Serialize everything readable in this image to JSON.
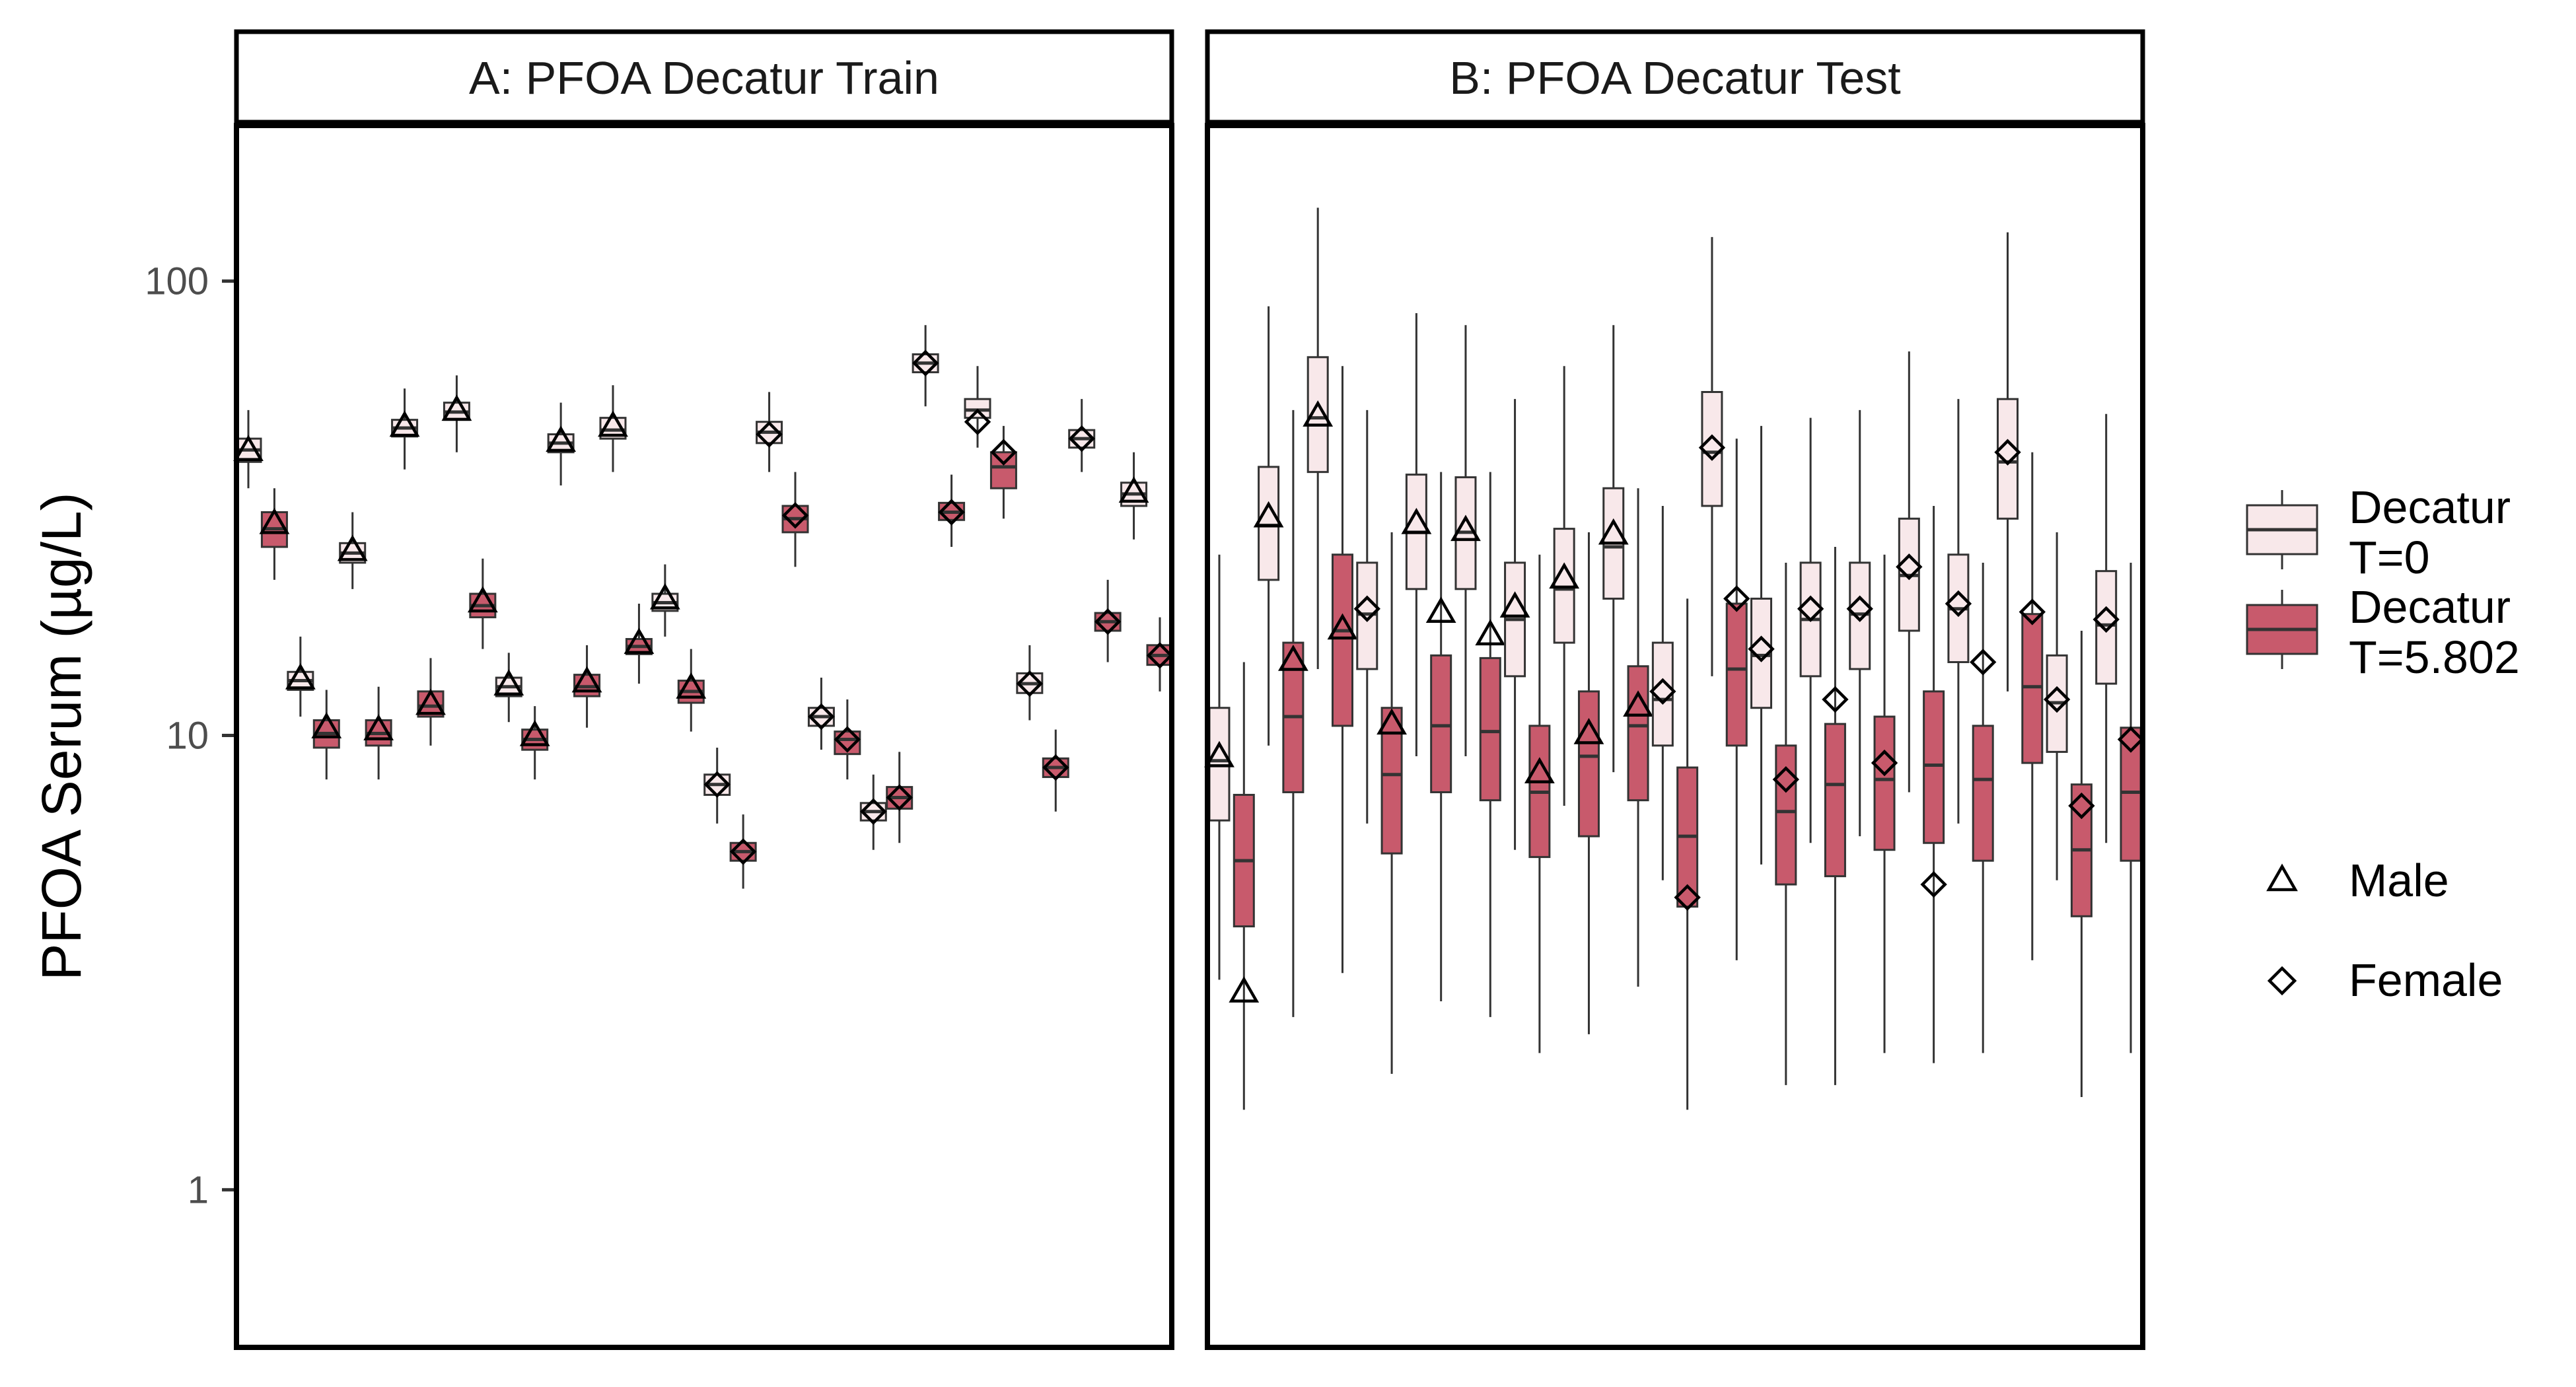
{
  "chart_data": {
    "type": "box",
    "ylabel": "PFOA Serum (µg/L)",
    "yscale": "log",
    "ylim": [
      0.45,
      220
    ],
    "yticks": [
      1,
      10,
      100
    ],
    "ytick_labels": [
      "1",
      "10",
      "100"
    ],
    "colors": {
      "Decatur T=0": "#f8e8ea",
      "Decatur T=5.802": "#c85a6c"
    },
    "legend": {
      "fill": [
        {
          "group": "t0",
          "label_line1": "Decatur",
          "label_line2": "T=0"
        },
        {
          "group": "t5",
          "label_line1": "Decatur",
          "label_line2": "T=5.802"
        }
      ],
      "shape": [
        {
          "shape": "triangle",
          "label": "Male"
        },
        {
          "shape": "diamond",
          "label": "Female"
        }
      ],
      "placement": "right"
    },
    "panels": [
      {
        "title": "A: PFOA Decatur Train",
        "boxes": [
          {
            "group": "t0",
            "q1": 40,
            "median": 42.5,
            "q3": 45,
            "lo": 35,
            "hi": 52,
            "obs": 42,
            "shape": "triangle"
          },
          {
            "group": "t5",
            "q1": 26,
            "median": 28.5,
            "q3": 31,
            "lo": 22,
            "hi": 35,
            "obs": 29,
            "shape": "triangle"
          },
          {
            "group": "t0",
            "q1": 12.6,
            "median": 13.2,
            "q3": 13.8,
            "lo": 11,
            "hi": 16.5,
            "obs": 13.2,
            "shape": "triangle"
          },
          {
            "group": "t5",
            "q1": 9.4,
            "median": 10.1,
            "q3": 10.8,
            "lo": 8,
            "hi": 12.6,
            "obs": 10.3,
            "shape": "triangle"
          },
          {
            "group": "t0",
            "q1": 24,
            "median": 25.2,
            "q3": 26.5,
            "lo": 21,
            "hi": 31,
            "obs": 25.3,
            "shape": "triangle"
          },
          {
            "group": "t5",
            "q1": 9.5,
            "median": 10.1,
            "q3": 10.8,
            "lo": 8,
            "hi": 12.8,
            "obs": 10.2,
            "shape": "triangle"
          },
          {
            "group": "t0",
            "q1": 45.5,
            "median": 47.5,
            "q3": 49.5,
            "lo": 38.5,
            "hi": 58,
            "obs": 47.5,
            "shape": "triangle"
          },
          {
            "group": "t5",
            "q1": 11,
            "median": 11.6,
            "q3": 12.5,
            "lo": 9.5,
            "hi": 14.8,
            "obs": 11.6,
            "shape": "triangle"
          },
          {
            "group": "t0",
            "q1": 49.5,
            "median": 51.5,
            "q3": 54,
            "lo": 42,
            "hi": 62,
            "obs": 51.5,
            "shape": "triangle"
          },
          {
            "group": "t5",
            "q1": 18.2,
            "median": 19.3,
            "q3": 20.5,
            "lo": 15.5,
            "hi": 24.5,
            "obs": 19.5,
            "shape": "triangle"
          },
          {
            "group": "t0",
            "q1": 12.2,
            "median": 12.8,
            "q3": 13.4,
            "lo": 10.7,
            "hi": 15.2,
            "obs": 12.8,
            "shape": "triangle"
          },
          {
            "group": "t5",
            "q1": 9.3,
            "median": 9.8,
            "q3": 10.3,
            "lo": 8,
            "hi": 11.6,
            "obs": 9.9,
            "shape": "triangle"
          },
          {
            "group": "t0",
            "q1": 42,
            "median": 44,
            "q3": 46,
            "lo": 35.5,
            "hi": 54,
            "obs": 44,
            "shape": "triangle"
          },
          {
            "group": "t5",
            "q1": 12.2,
            "median": 12.8,
            "q3": 13.6,
            "lo": 10.4,
            "hi": 15.8,
            "obs": 13,
            "shape": "triangle"
          },
          {
            "group": "t0",
            "q1": 45,
            "median": 47,
            "q3": 50,
            "lo": 38,
            "hi": 59,
            "obs": 47.5,
            "shape": "triangle"
          },
          {
            "group": "t5",
            "q1": 15.1,
            "median": 15.7,
            "q3": 16.3,
            "lo": 13,
            "hi": 19.5,
            "obs": 15.8,
            "shape": "triangle"
          },
          {
            "group": "t0",
            "q1": 18.8,
            "median": 19.6,
            "q3": 20.5,
            "lo": 16.5,
            "hi": 23.8,
            "obs": 19.8,
            "shape": "triangle"
          },
          {
            "group": "t5",
            "q1": 11.8,
            "median": 12.5,
            "q3": 13.2,
            "lo": 10.2,
            "hi": 15.5,
            "obs": 12.6,
            "shape": "triangle"
          },
          {
            "group": "t0",
            "q1": 7.4,
            "median": 7.8,
            "q3": 8.2,
            "lo": 6.4,
            "hi": 9.4,
            "obs": 7.8,
            "shape": "diamond"
          },
          {
            "group": "t5",
            "q1": 5.3,
            "median": 5.55,
            "q3": 5.8,
            "lo": 4.6,
            "hi": 6.7,
            "obs": 5.55,
            "shape": "diamond"
          },
          {
            "group": "t0",
            "q1": 44,
            "median": 46.5,
            "q3": 49,
            "lo": 38,
            "hi": 57,
            "obs": 46,
            "shape": "diamond"
          },
          {
            "group": "t5",
            "q1": 28,
            "median": 30,
            "q3": 32,
            "lo": 23.5,
            "hi": 38,
            "obs": 30.5,
            "shape": "diamond"
          },
          {
            "group": "t0",
            "q1": 10.5,
            "median": 11,
            "q3": 11.5,
            "lo": 9.3,
            "hi": 13.4,
            "obs": 11,
            "shape": "diamond"
          },
          {
            "group": "t5",
            "q1": 9.1,
            "median": 9.8,
            "q3": 10.2,
            "lo": 8,
            "hi": 12,
            "obs": 9.8,
            "shape": "diamond"
          },
          {
            "group": "t0",
            "q1": 6.5,
            "median": 6.8,
            "q3": 7.1,
            "lo": 5.6,
            "hi": 8.2,
            "obs": 6.8,
            "shape": "diamond"
          },
          {
            "group": "t5",
            "q1": 6.9,
            "median": 7.3,
            "q3": 7.7,
            "lo": 5.8,
            "hi": 9.2,
            "obs": 7.3,
            "shape": "diamond"
          },
          {
            "group": "t0",
            "q1": 63,
            "median": 66,
            "q3": 69,
            "lo": 53,
            "hi": 80,
            "obs": 66,
            "shape": "diamond"
          },
          {
            "group": "t5",
            "q1": 29.8,
            "median": 31,
            "q3": 32.5,
            "lo": 26,
            "hi": 37.5,
            "obs": 31,
            "shape": "diamond"
          },
          {
            "group": "t0",
            "q1": 50,
            "median": 52,
            "q3": 55,
            "lo": 43,
            "hi": 65,
            "obs": 49,
            "shape": "diamond"
          },
          {
            "group": "t5",
            "q1": 35,
            "median": 39,
            "q3": 42,
            "lo": 30,
            "hi": 48,
            "obs": 42,
            "shape": "diamond"
          },
          {
            "group": "t0",
            "q1": 12.4,
            "median": 13,
            "q3": 13.7,
            "lo": 10.8,
            "hi": 15.8,
            "obs": 13,
            "shape": "diamond"
          },
          {
            "group": "t5",
            "q1": 8.1,
            "median": 8.5,
            "q3": 8.9,
            "lo": 6.8,
            "hi": 10.3,
            "obs": 8.5,
            "shape": "diamond"
          },
          {
            "group": "t0",
            "q1": 43,
            "median": 45,
            "q3": 47,
            "lo": 38,
            "hi": 55,
            "obs": 45,
            "shape": "diamond"
          },
          {
            "group": "t5",
            "q1": 17,
            "median": 17.8,
            "q3": 18.6,
            "lo": 14.5,
            "hi": 22,
            "obs": 17.8,
            "shape": "diamond"
          },
          {
            "group": "t0",
            "q1": 32,
            "median": 34,
            "q3": 36,
            "lo": 27,
            "hi": 42,
            "obs": 34,
            "shape": "triangle"
          },
          {
            "group": "t5",
            "q1": 14.3,
            "median": 15,
            "q3": 15.8,
            "lo": 12.5,
            "hi": 18.2,
            "obs": 15,
            "shape": "diamond"
          }
        ]
      },
      {
        "title": "B: PFOA Decatur Test",
        "boxes": [
          {
            "group": "t0",
            "q1": 6.5,
            "median": 8.8,
            "q3": 11.5,
            "lo": 2.9,
            "hi": 25,
            "obs": 8.9,
            "shape": "triangle"
          },
          {
            "group": "t5",
            "q1": 3.8,
            "median": 5.3,
            "q3": 7.4,
            "lo": 1.5,
            "hi": 14.5,
            "obs": 2.7,
            "shape": "triangle"
          },
          {
            "group": "t0",
            "q1": 22,
            "median": 29,
            "q3": 39,
            "lo": 9.5,
            "hi": 88,
            "obs": 30,
            "shape": "triangle"
          },
          {
            "group": "t5",
            "q1": 7.5,
            "median": 11,
            "q3": 16,
            "lo": 2.4,
            "hi": 52,
            "obs": 14.5,
            "shape": "triangle"
          },
          {
            "group": "t0",
            "q1": 38,
            "median": 50,
            "q3": 68,
            "lo": 14,
            "hi": 145,
            "obs": 50,
            "shape": "triangle"
          },
          {
            "group": "t5",
            "q1": 10.5,
            "median": 17,
            "q3": 25,
            "lo": 3,
            "hi": 65,
            "obs": 17,
            "shape": "triangle"
          },
          {
            "group": "t0",
            "q1": 14,
            "median": 18.5,
            "q3": 24,
            "lo": 6.4,
            "hi": 52,
            "obs": 19,
            "shape": "diamond"
          },
          {
            "group": "t5",
            "q1": 5.5,
            "median": 8.2,
            "q3": 11.5,
            "lo": 1.8,
            "hi": 28,
            "obs": 10.5,
            "shape": "triangle"
          },
          {
            "group": "t0",
            "q1": 21,
            "median": 28,
            "q3": 37.5,
            "lo": 9,
            "hi": 85,
            "obs": 29,
            "shape": "triangle"
          },
          {
            "group": "t5",
            "q1": 7.5,
            "median": 10.5,
            "q3": 15,
            "lo": 2.6,
            "hi": 38,
            "obs": 18.5,
            "shape": "triangle"
          },
          {
            "group": "t0",
            "q1": 21,
            "median": 28,
            "q3": 37,
            "lo": 9,
            "hi": 80,
            "obs": 28,
            "shape": "triangle"
          },
          {
            "group": "t5",
            "q1": 7.2,
            "median": 10.2,
            "q3": 14.8,
            "lo": 2.4,
            "hi": 38,
            "obs": 16.5,
            "shape": "triangle"
          },
          {
            "group": "t0",
            "q1": 13.5,
            "median": 18,
            "q3": 24,
            "lo": 5.6,
            "hi": 55,
            "obs": 19,
            "shape": "triangle"
          },
          {
            "group": "t5",
            "q1": 5.4,
            "median": 7.5,
            "q3": 10.5,
            "lo": 2,
            "hi": 25,
            "obs": 8.2,
            "shape": "triangle"
          },
          {
            "group": "t0",
            "q1": 16,
            "median": 21,
            "q3": 28.5,
            "lo": 7,
            "hi": 65,
            "obs": 22,
            "shape": "triangle"
          },
          {
            "group": "t5",
            "q1": 6,
            "median": 9,
            "q3": 12.5,
            "lo": 2.2,
            "hi": 28,
            "obs": 10,
            "shape": "triangle"
          },
          {
            "group": "t0",
            "q1": 20,
            "median": 26,
            "q3": 35,
            "lo": 8.3,
            "hi": 80,
            "obs": 27.5,
            "shape": "triangle"
          },
          {
            "group": "t5",
            "q1": 7.2,
            "median": 10.5,
            "q3": 14.2,
            "lo": 2.8,
            "hi": 35,
            "obs": 11.5,
            "shape": "triangle"
          },
          {
            "group": "t0",
            "q1": 9.5,
            "median": 12,
            "q3": 16,
            "lo": 4.8,
            "hi": 32,
            "obs": 12.5,
            "shape": "diamond"
          },
          {
            "group": "t5",
            "q1": 4.2,
            "median": 6,
            "q3": 8.5,
            "lo": 1.5,
            "hi": 20,
            "obs": 4.4,
            "shape": "diamond"
          },
          {
            "group": "t0",
            "q1": 32,
            "median": 42,
            "q3": 57,
            "lo": 13.5,
            "hi": 125,
            "obs": 43,
            "shape": "diamond"
          },
          {
            "group": "t5",
            "q1": 9.5,
            "median": 14,
            "q3": 19.5,
            "lo": 3.2,
            "hi": 45,
            "obs": 20,
            "shape": "diamond"
          },
          {
            "group": "t0",
            "q1": 11.5,
            "median": 15,
            "q3": 20,
            "lo": 5.2,
            "hi": 48,
            "obs": 15.5,
            "shape": "diamond"
          },
          {
            "group": "t5",
            "q1": 4.7,
            "median": 6.8,
            "q3": 9.5,
            "lo": 1.7,
            "hi": 24,
            "obs": 8,
            "shape": "diamond"
          },
          {
            "group": "t0",
            "q1": 13.5,
            "median": 18,
            "q3": 24,
            "lo": 5.8,
            "hi": 50,
            "obs": 19,
            "shape": "diamond"
          },
          {
            "group": "t5",
            "q1": 4.9,
            "median": 7.8,
            "q3": 10.6,
            "lo": 1.7,
            "hi": 26,
            "obs": 12,
            "shape": "diamond"
          },
          {
            "group": "t0",
            "q1": 14,
            "median": 18.5,
            "q3": 24,
            "lo": 6,
            "hi": 52,
            "obs": 19,
            "shape": "diamond"
          },
          {
            "group": "t5",
            "q1": 5.6,
            "median": 8,
            "q3": 11,
            "lo": 2,
            "hi": 25,
            "obs": 8.7,
            "shape": "diamond"
          },
          {
            "group": "t0",
            "q1": 17,
            "median": 22.5,
            "q3": 30,
            "lo": 7.5,
            "hi": 70,
            "obs": 23.5,
            "shape": "diamond"
          },
          {
            "group": "t5",
            "q1": 5.8,
            "median": 8.6,
            "q3": 12.5,
            "lo": 1.9,
            "hi": 32,
            "obs": 4.7,
            "shape": "diamond"
          },
          {
            "group": "t0",
            "q1": 14.5,
            "median": 19,
            "q3": 25,
            "lo": 6.4,
            "hi": 55,
            "obs": 19.5,
            "shape": "diamond"
          },
          {
            "group": "t5",
            "q1": 5.3,
            "median": 8,
            "q3": 10.5,
            "lo": 2,
            "hi": 24,
            "obs": 14.5,
            "shape": "diamond"
          },
          {
            "group": "t0",
            "q1": 30,
            "median": 40,
            "q3": 55,
            "lo": 12.5,
            "hi": 128,
            "obs": 42,
            "shape": "diamond"
          },
          {
            "group": "t5",
            "q1": 8.7,
            "median": 12.8,
            "q3": 18.5,
            "lo": 3.2,
            "hi": 42,
            "obs": 18.7,
            "shape": "diamond"
          },
          {
            "group": "t0",
            "q1": 9.2,
            "median": 11.8,
            "q3": 15,
            "lo": 4.8,
            "hi": 28,
            "obs": 12,
            "shape": "diamond"
          },
          {
            "group": "t5",
            "q1": 4,
            "median": 5.6,
            "q3": 7.8,
            "lo": 1.6,
            "hi": 17,
            "obs": 7,
            "shape": "diamond"
          },
          {
            "group": "t0",
            "q1": 13,
            "median": 17.5,
            "q3": 23,
            "lo": 5.8,
            "hi": 51,
            "obs": 18,
            "shape": "diamond"
          },
          {
            "group": "t5",
            "q1": 5.3,
            "median": 7.5,
            "q3": 10.4,
            "lo": 2,
            "hi": 24,
            "obs": 9.8,
            "shape": "diamond"
          }
        ]
      }
    ]
  }
}
